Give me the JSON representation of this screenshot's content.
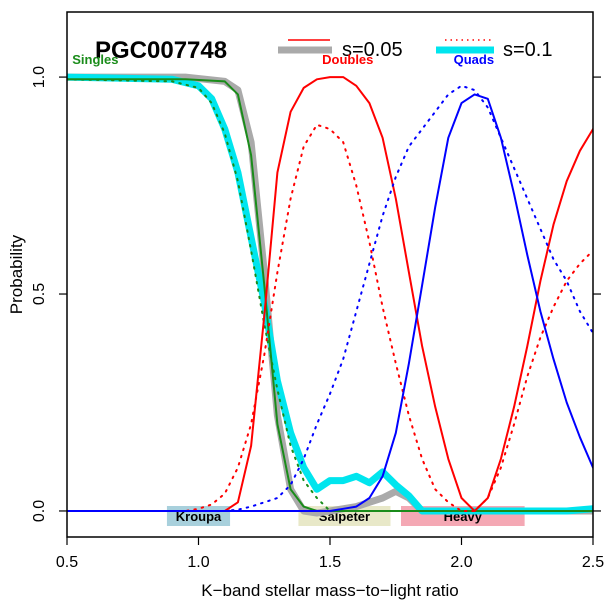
{
  "chart_data": {
    "type": "line",
    "title": "PGC007748",
    "xlabel": "K−band stellar mass−to−light ratio",
    "ylabel": "Probability",
    "xlim": [
      0.5,
      2.5
    ],
    "ylim": [
      -0.06,
      1.15
    ],
    "x_ticks": [
      0.5,
      1.0,
      1.5,
      2.0,
      2.5
    ],
    "x_tick_labels": [
      "0.5",
      "1.0",
      "1.5",
      "2.0",
      "2.5"
    ],
    "y_ticks": [
      0.0,
      0.5,
      1.0
    ],
    "y_tick_labels": [
      "0.0",
      "0.5",
      "1.0"
    ],
    "grid": false,
    "legend": {
      "entries": [
        {
          "label": "s=0.05",
          "style": "solid"
        },
        {
          "label": "s=0.1",
          "style": "dotted"
        }
      ],
      "placement": "top-right"
    },
    "series_labels": [
      {
        "text": "Singles",
        "color": "#1a8c1a",
        "x": 0.52,
        "y": 1.03
      },
      {
        "text": "Doubles",
        "color": "#ff0000",
        "x": 1.47,
        "y": 1.03
      },
      {
        "text": "Quads",
        "color": "#0000ff",
        "x": 1.97,
        "y": 1.03
      }
    ],
    "bands": [
      {
        "label": "Kroupa",
        "x0": 0.88,
        "x1": 1.12,
        "color": "#a8d0dc"
      },
      {
        "label": "Salpeter",
        "x0": 1.38,
        "x1": 1.73,
        "color": "#e8e8c8"
      },
      {
        "label": "Heavy",
        "x0": 1.77,
        "x1": 2.24,
        "color": "#f4a8b4"
      }
    ],
    "series": [
      {
        "name": "s=0.05",
        "color": "#aaaaaa",
        "style": "thick",
        "x": [
          0.5,
          0.95,
          1.1,
          1.15,
          1.2,
          1.25,
          1.3,
          1.35,
          1.4,
          1.45,
          1.5,
          1.6,
          1.7,
          1.75,
          1.8,
          1.85,
          2.0,
          2.2,
          2.4,
          2.5
        ],
        "values": [
          1.0,
          1.0,
          0.99,
          0.97,
          0.85,
          0.55,
          0.22,
          0.05,
          0.0,
          -0.005,
          0.0,
          0.01,
          0.03,
          0.045,
          0.03,
          0.0,
          0.0,
          0.0,
          0.0,
          0.0
        ]
      },
      {
        "name": "s=0.1",
        "color": "#00e5ee",
        "style": "thick",
        "x": [
          0.5,
          0.9,
          1.0,
          1.05,
          1.1,
          1.15,
          1.2,
          1.25,
          1.3,
          1.35,
          1.4,
          1.45,
          1.5,
          1.55,
          1.6,
          1.65,
          1.7,
          1.75,
          1.8,
          1.85,
          2.0,
          2.4,
          2.5
        ],
        "values": [
          1.0,
          0.995,
          0.98,
          0.95,
          0.88,
          0.78,
          0.63,
          0.48,
          0.3,
          0.18,
          0.1,
          0.05,
          0.07,
          0.07,
          0.08,
          0.065,
          0.09,
          0.06,
          0.035,
          0.0,
          0.0,
          0.0,
          0.005
        ]
      },
      {
        "name": "Singles s=0.05",
        "color": "#1a8c1a",
        "style": "solid",
        "x": [
          0.5,
          0.95,
          1.1,
          1.15,
          1.2,
          1.25,
          1.3,
          1.35,
          1.4,
          1.45,
          1.5,
          2.0,
          2.5
        ],
        "values": [
          0.995,
          0.995,
          0.99,
          0.96,
          0.82,
          0.52,
          0.2,
          0.05,
          0.01,
          0.0,
          0.0,
          0.0,
          0.0
        ]
      },
      {
        "name": "Singles s=0.1",
        "color": "#1a8c1a",
        "style": "dotted",
        "x": [
          0.5,
          0.9,
          1.0,
          1.05,
          1.1,
          1.15,
          1.2,
          1.25,
          1.3,
          1.35,
          1.4,
          1.45,
          1.5,
          2.0,
          2.5
        ],
        "values": [
          0.995,
          0.99,
          0.975,
          0.94,
          0.87,
          0.76,
          0.6,
          0.43,
          0.28,
          0.15,
          0.07,
          0.03,
          0.0,
          0.0,
          0.0
        ]
      },
      {
        "name": "Doubles s=0.05",
        "color": "#ff0000",
        "style": "solid",
        "x": [
          0.5,
          1.1,
          1.15,
          1.2,
          1.25,
          1.3,
          1.35,
          1.4,
          1.45,
          1.5,
          1.55,
          1.6,
          1.65,
          1.7,
          1.75,
          1.8,
          1.85,
          1.9,
          1.95,
          2.0,
          2.05,
          2.1,
          2.15,
          2.2,
          2.25,
          2.3,
          2.35,
          2.4,
          2.45,
          2.5
        ],
        "values": [
          0.0,
          0.0,
          0.02,
          0.15,
          0.45,
          0.78,
          0.92,
          0.975,
          0.995,
          1.0,
          1.0,
          0.98,
          0.94,
          0.86,
          0.72,
          0.55,
          0.38,
          0.24,
          0.12,
          0.03,
          0.0,
          0.03,
          0.12,
          0.24,
          0.38,
          0.53,
          0.66,
          0.76,
          0.83,
          0.88
        ]
      },
      {
        "name": "Doubles s=0.1",
        "color": "#ff0000",
        "style": "dotted",
        "x": [
          0.5,
          0.95,
          1.0,
          1.05,
          1.1,
          1.15,
          1.2,
          1.25,
          1.3,
          1.35,
          1.4,
          1.45,
          1.5,
          1.55,
          1.6,
          1.65,
          1.7,
          1.75,
          1.8,
          1.85,
          1.9,
          1.95,
          2.0,
          2.05,
          2.1,
          2.15,
          2.2,
          2.25,
          2.3,
          2.35,
          2.4,
          2.45,
          2.5
        ],
        "values": [
          0.0,
          0.0,
          0.005,
          0.015,
          0.04,
          0.1,
          0.2,
          0.36,
          0.55,
          0.72,
          0.84,
          0.89,
          0.88,
          0.85,
          0.75,
          0.62,
          0.47,
          0.34,
          0.22,
          0.12,
          0.05,
          0.02,
          0.0,
          0.0,
          0.03,
          0.1,
          0.2,
          0.31,
          0.4,
          0.47,
          0.53,
          0.57,
          0.6
        ]
      },
      {
        "name": "Quads s=0.05",
        "color": "#0000ff",
        "style": "solid",
        "x": [
          0.5,
          1.45,
          1.5,
          1.55,
          1.6,
          1.65,
          1.7,
          1.75,
          1.8,
          1.85,
          1.9,
          1.95,
          2.0,
          2.05,
          2.1,
          2.15,
          2.2,
          2.25,
          2.3,
          2.35,
          2.4,
          2.45,
          2.5
        ],
        "values": [
          0.0,
          0.0,
          0.0,
          0.005,
          0.01,
          0.03,
          0.08,
          0.18,
          0.34,
          0.52,
          0.7,
          0.86,
          0.94,
          0.96,
          0.95,
          0.86,
          0.73,
          0.59,
          0.46,
          0.35,
          0.25,
          0.17,
          0.1
        ]
      },
      {
        "name": "Quads s=0.1",
        "color": "#0000ff",
        "style": "dotted",
        "x": [
          0.5,
          1.1,
          1.15,
          1.2,
          1.25,
          1.3,
          1.35,
          1.4,
          1.45,
          1.5,
          1.55,
          1.6,
          1.65,
          1.7,
          1.75,
          1.8,
          1.85,
          1.9,
          1.95,
          2.0,
          2.05,
          2.1,
          2.15,
          2.2,
          2.25,
          2.3,
          2.35,
          2.4,
          2.45,
          2.5
        ],
        "values": [
          0.0,
          0.0,
          0.003,
          0.01,
          0.02,
          0.03,
          0.06,
          0.12,
          0.2,
          0.27,
          0.35,
          0.46,
          0.57,
          0.68,
          0.77,
          0.84,
          0.88,
          0.92,
          0.96,
          0.98,
          0.97,
          0.93,
          0.86,
          0.79,
          0.72,
          0.65,
          0.58,
          0.53,
          0.46,
          0.41
        ]
      }
    ]
  }
}
